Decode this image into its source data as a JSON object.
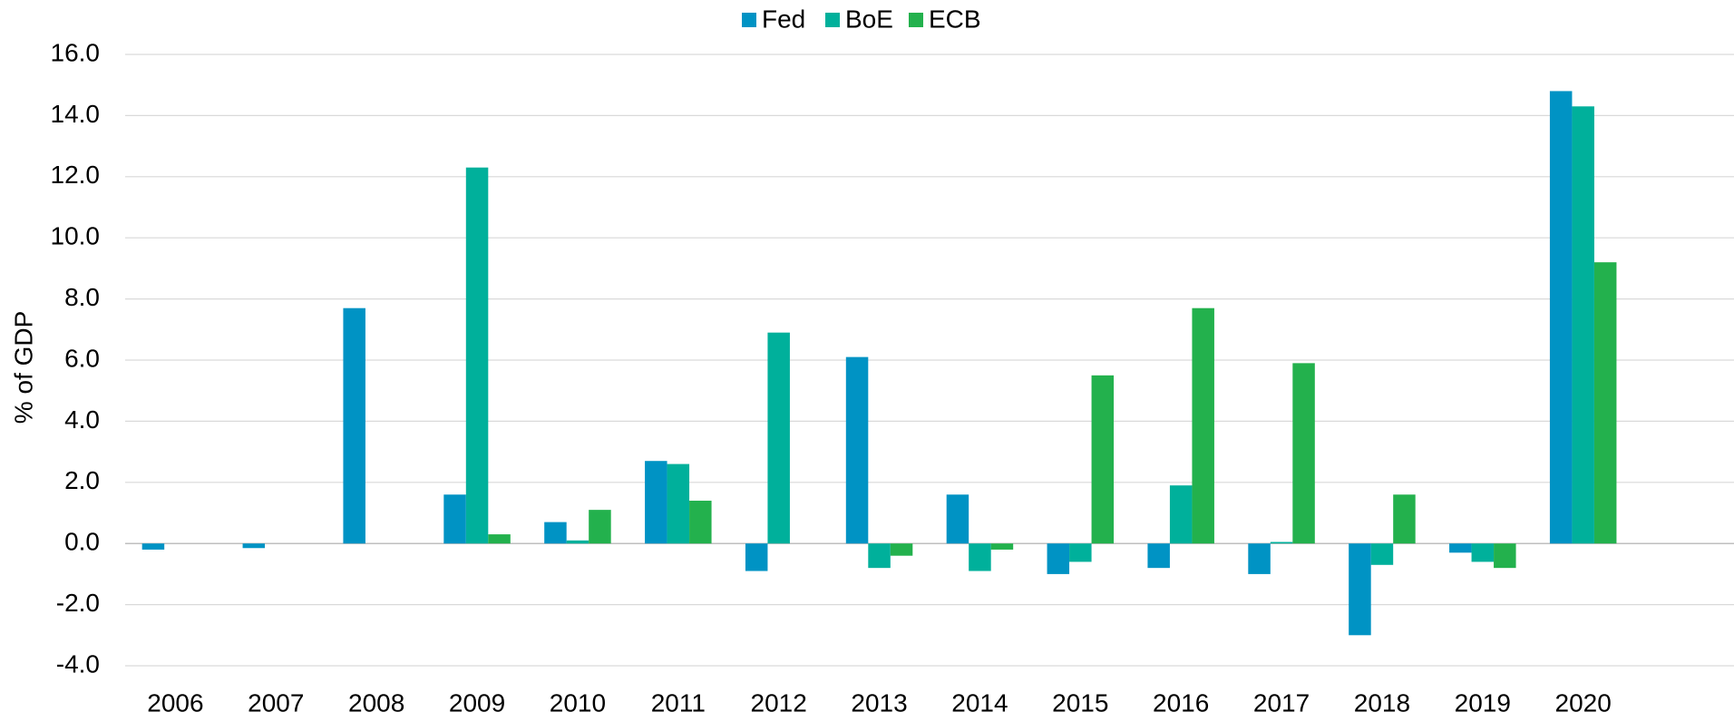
{
  "chart_data": {
    "type": "bar",
    "y_label": "% of GDP",
    "categories": [
      "2006",
      "2007",
      "2008",
      "2009",
      "2010",
      "2011",
      "2012",
      "2013",
      "2014",
      "2015",
      "2016",
      "2017",
      "2018",
      "2019",
      "2020",
      null
    ],
    "series": [
      {
        "name": "Fed",
        "color": "#0093c4",
        "values": [
          -0.2,
          -0.15,
          7.7,
          1.6,
          0.7,
          2.7,
          -0.9,
          6.1,
          1.6,
          -1.0,
          -0.8,
          -1.0,
          -3.0,
          -0.3,
          14.8,
          null
        ]
      },
      {
        "name": "BoE",
        "color": "#00b09b",
        "values": [
          null,
          null,
          null,
          12.3,
          0.1,
          2.6,
          6.9,
          -0.8,
          -0.9,
          -0.6,
          1.9,
          0.05,
          -0.7,
          -0.6,
          14.3,
          null
        ]
      },
      {
        "name": "ECB",
        "color": "#23b14d",
        "values": [
          null,
          null,
          null,
          0.3,
          1.1,
          1.4,
          null,
          -0.4,
          -0.2,
          5.5,
          7.7,
          5.9,
          1.6,
          -0.8,
          9.2,
          null
        ]
      }
    ],
    "ylim": [
      -4,
      16
    ],
    "yticks": [
      {
        "value": -4,
        "label": "-4.0"
      },
      {
        "value": -2,
        "label": "-2.0"
      },
      {
        "value": 0,
        "label": "0.0"
      },
      {
        "value": 2,
        "label": "2.0"
      },
      {
        "value": 4,
        "label": "4.0"
      },
      {
        "value": 6,
        "label": "6.0"
      },
      {
        "value": 8,
        "label": "8.0"
      },
      {
        "value": 10,
        "label": "10.0"
      },
      {
        "value": 12,
        "label": "12.0"
      },
      {
        "value": 14,
        "label": "14.0"
      },
      {
        "value": 16,
        "label": "16.0"
      }
    ],
    "grid": true,
    "legend": "top"
  }
}
